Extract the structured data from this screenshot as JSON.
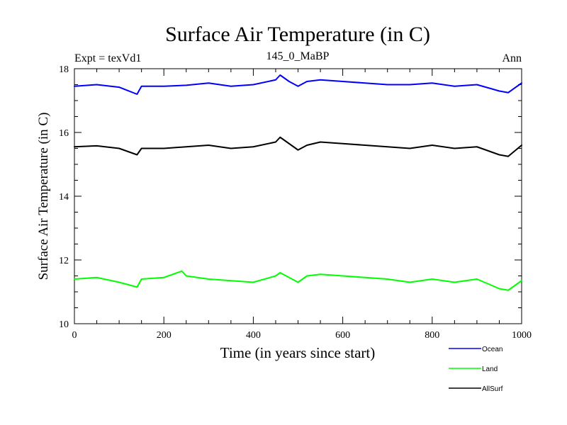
{
  "chart_data": {
    "type": "line",
    "title": "Surface Air Temperature (in C)",
    "subtitle_left": "Expt = texVd1",
    "subtitle_center": "145_0_MaBP",
    "subtitle_right": "Ann",
    "xlabel": "Time (in years since start)",
    "ylabel": "Surface Air Temperature (in C)",
    "xlim": [
      0,
      1000
    ],
    "ylim": [
      10,
      18
    ],
    "x_ticks": [
      0,
      200,
      400,
      600,
      800,
      1000
    ],
    "y_ticks": [
      10,
      12,
      14,
      16,
      18
    ],
    "legend_position": "bottom-right outside",
    "series": [
      {
        "name": "Ocean",
        "color": "#0000ff",
        "x": [
          0,
          50,
          100,
          140,
          150,
          200,
          250,
          300,
          350,
          400,
          450,
          460,
          480,
          500,
          520,
          550,
          600,
          650,
          700,
          750,
          800,
          850,
          900,
          950,
          970,
          1000
        ],
        "values": [
          17.45,
          17.5,
          17.42,
          17.2,
          17.45,
          17.45,
          17.48,
          17.55,
          17.45,
          17.5,
          17.65,
          17.8,
          17.6,
          17.45,
          17.6,
          17.65,
          17.6,
          17.55,
          17.5,
          17.5,
          17.55,
          17.45,
          17.5,
          17.3,
          17.25,
          17.55
        ]
      },
      {
        "name": "Land",
        "color": "#00ff00",
        "x": [
          0,
          50,
          100,
          140,
          150,
          200,
          240,
          250,
          300,
          350,
          400,
          450,
          460,
          480,
          500,
          520,
          550,
          600,
          650,
          700,
          750,
          800,
          850,
          900,
          950,
          970,
          1000
        ],
        "values": [
          11.4,
          11.45,
          11.3,
          11.15,
          11.4,
          11.45,
          11.65,
          11.5,
          11.4,
          11.35,
          11.3,
          11.5,
          11.6,
          11.45,
          11.3,
          11.5,
          11.55,
          11.5,
          11.45,
          11.4,
          11.3,
          11.4,
          11.3,
          11.4,
          11.1,
          11.05,
          11.35
        ]
      },
      {
        "name": "AllSurf",
        "color": "#000000",
        "x": [
          0,
          50,
          100,
          140,
          150,
          200,
          250,
          300,
          350,
          400,
          450,
          460,
          480,
          500,
          520,
          550,
          600,
          650,
          700,
          750,
          800,
          850,
          900,
          950,
          970,
          1000
        ],
        "values": [
          15.55,
          15.58,
          15.5,
          15.3,
          15.5,
          15.5,
          15.55,
          15.6,
          15.5,
          15.55,
          15.7,
          15.85,
          15.65,
          15.45,
          15.6,
          15.7,
          15.65,
          15.6,
          15.55,
          15.5,
          15.6,
          15.5,
          15.55,
          15.3,
          15.25,
          15.6
        ]
      }
    ]
  }
}
